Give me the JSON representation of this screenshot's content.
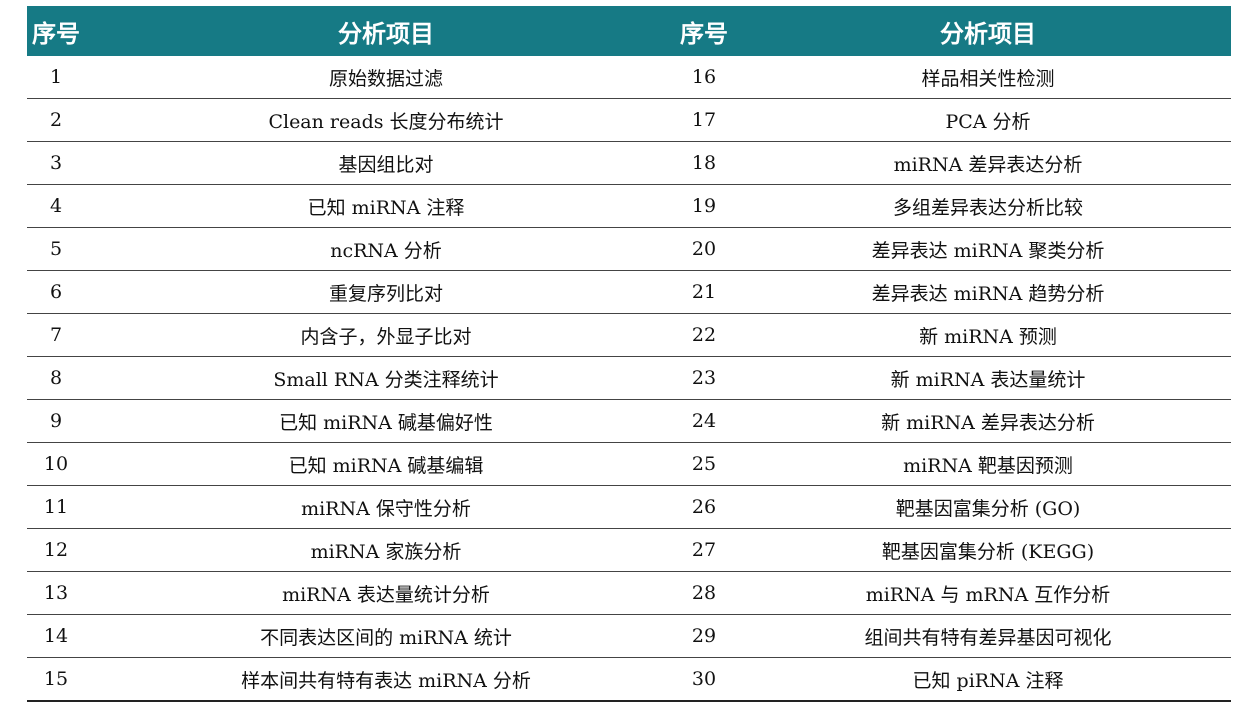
{
  "header": {
    "no_label": "序号",
    "item_label": "分析项目"
  },
  "rows": [
    {
      "left_no": "1",
      "left_item": "原始数据过滤",
      "right_no": "16",
      "right_item": "样品相关性检测"
    },
    {
      "left_no": "2",
      "left_item": "Clean reads 长度分布统计",
      "right_no": "17",
      "right_item": "PCA 分析"
    },
    {
      "left_no": "3",
      "left_item": "基因组比对",
      "right_no": "18",
      "right_item": "miRNA 差异表达分析"
    },
    {
      "left_no": "4",
      "left_item": "已知 miRNA 注释",
      "right_no": "19",
      "right_item": "多组差异表达分析比较"
    },
    {
      "left_no": "5",
      "left_item": "ncRNA 分析",
      "right_no": "20",
      "right_item": "差异表达 miRNA 聚类分析"
    },
    {
      "left_no": "6",
      "left_item": "重复序列比对",
      "right_no": "21",
      "right_item": "差异表达 miRNA 趋势分析"
    },
    {
      "left_no": "7",
      "left_item": "内含子，外显子比对",
      "right_no": "22",
      "right_item": "新 miRNA 预测"
    },
    {
      "left_no": "8",
      "left_item": "Small RNA 分类注释统计",
      "right_no": "23",
      "right_item": "新 miRNA 表达量统计"
    },
    {
      "left_no": "9",
      "left_item": "已知 miRNA 碱基偏好性",
      "right_no": "24",
      "right_item": "新 miRNA 差异表达分析"
    },
    {
      "left_no": "10",
      "left_item": "已知 miRNA 碱基编辑",
      "right_no": "25",
      "right_item": "miRNA 靶基因预测"
    },
    {
      "left_no": "11",
      "left_item": "miRNA 保守性分析",
      "right_no": "26",
      "right_item": "靶基因富集分析 (GO)"
    },
    {
      "left_no": "12",
      "left_item": "miRNA 家族分析",
      "right_no": "27",
      "right_item": "靶基因富集分析 (KEGG)"
    },
    {
      "left_no": "13",
      "left_item": "miRNA 表达量统计分析",
      "right_no": "28",
      "right_item": "miRNA 与 mRNA 互作分析"
    },
    {
      "left_no": "14",
      "left_item": "不同表达区间的 miRNA 统计",
      "right_no": "29",
      "right_item": "组间共有特有差异基因可视化"
    },
    {
      "left_no": "15",
      "left_item": "样本间共有特有表达 miRNA 分析",
      "right_no": "30",
      "right_item": "已知 piRNA 注释"
    }
  ],
  "colors": {
    "header_bg": "#167a85",
    "header_text": "#ffffff"
  }
}
